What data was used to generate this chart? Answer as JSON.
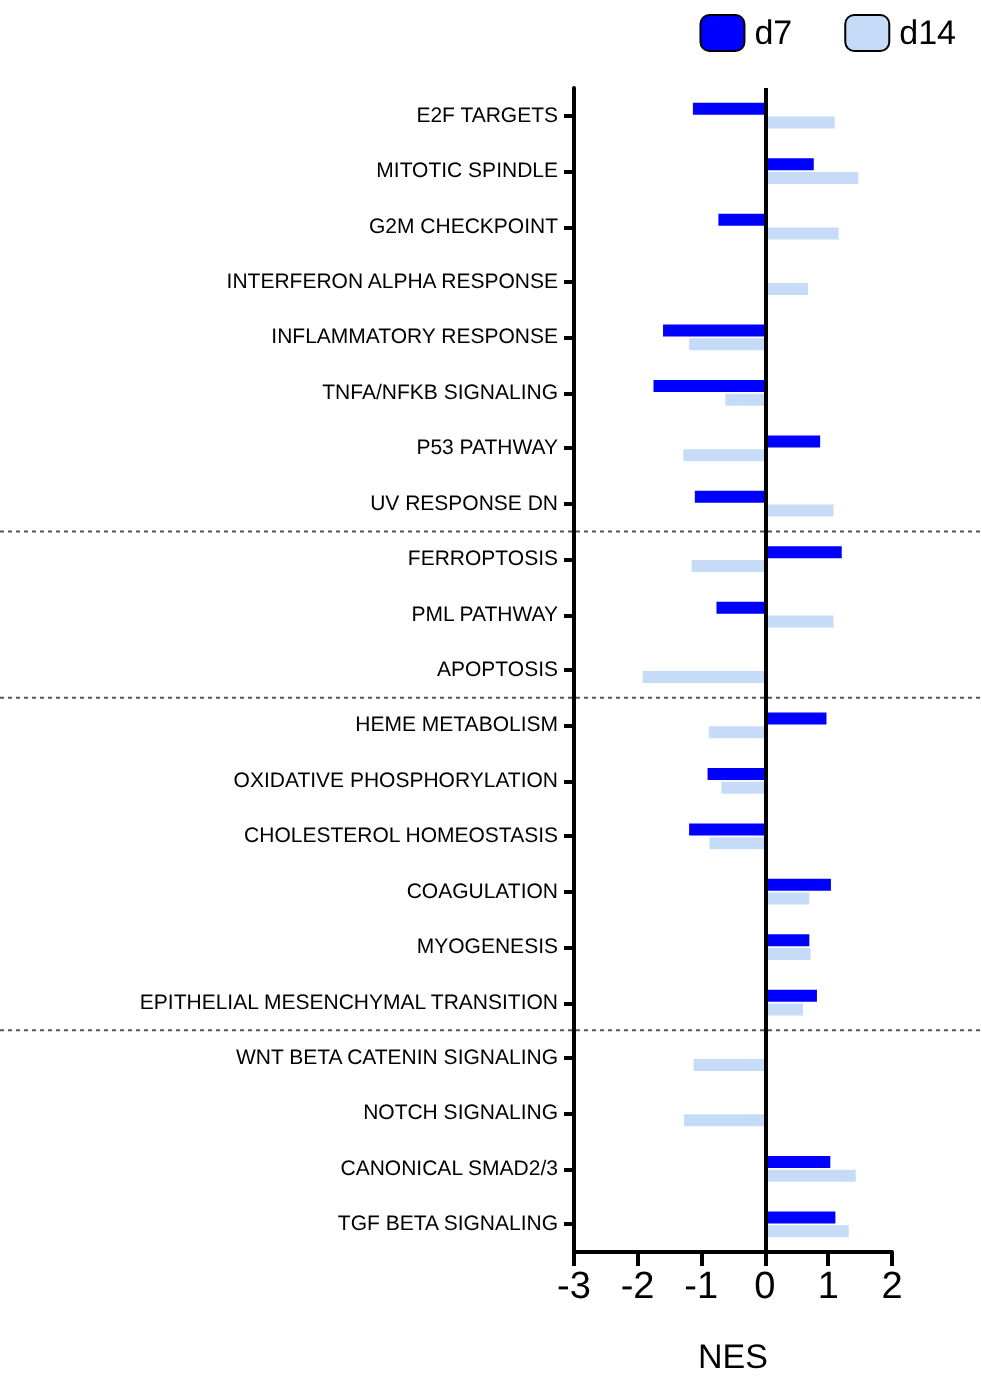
{
  "chart_data": {
    "type": "bar",
    "orientation": "horizontal",
    "xlabel": "NES",
    "categories": [
      "E2F TARGETS",
      "MITOTIC SPINDLE",
      "G2M CHECKPOINT",
      "INTERFERON ALPHA RESPONSE",
      "INFLAMMATORY RESPONSE",
      "TNFA/NFKB SIGNALING",
      "P53 PATHWAY",
      "UV RESPONSE DN",
      "FERROPTOSIS",
      "PML PATHWAY",
      "APOPTOSIS",
      "HEME METABOLISM",
      "OXIDATIVE PHOSPHORYLATION",
      "CHOLESTEROL HOMEOSTASIS",
      "COAGULATION",
      "MYOGENESIS",
      "EPITHELIAL MESENCHYMAL TRANSITION",
      "WNT BETA CATENIN SIGNALING",
      "NOTCH SIGNALING",
      "CANONICAL SMAD2/3",
      "TGF BETA SIGNALING"
    ],
    "series": [
      {
        "name": "d7",
        "color": "#0000ff",
        "values": [
          -1.13,
          0.77,
          -0.73,
          null,
          -1.6,
          -1.75,
          0.87,
          -1.1,
          1.21,
          -0.76,
          null,
          0.97,
          -0.9,
          -1.19,
          1.04,
          0.7,
          0.82,
          null,
          null,
          1.03,
          1.11
        ]
      },
      {
        "name": "d14",
        "color": "#c6dbf7",
        "values": [
          1.1,
          1.47,
          1.16,
          0.68,
          -1.19,
          -0.62,
          -1.28,
          1.08,
          -1.15,
          1.08,
          -1.92,
          -0.88,
          -0.68,
          -0.87,
          0.7,
          0.72,
          0.6,
          -1.12,
          -1.27,
          1.43,
          1.32
        ]
      }
    ],
    "xlim": [
      -3,
      2
    ],
    "xticks": [
      -3,
      -2,
      -1,
      0,
      1,
      2
    ],
    "ref_lines": [
      {
        "axis": "x",
        "value": 0,
        "line_style": "solid",
        "color": "#000000"
      }
    ],
    "grid": false,
    "legend": "top right"
  }
}
